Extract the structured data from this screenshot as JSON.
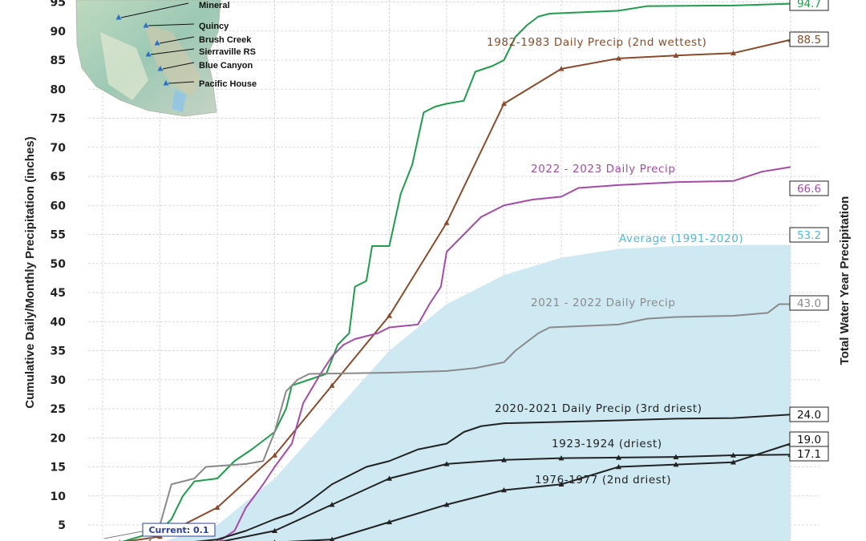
{
  "chart_data": {
    "type": "line",
    "ylabel_left": "Cumulative Daily/Monthly Precipitation (inches)",
    "ylabel_right": "Total Water Year Precipitation",
    "y_ticks": [
      5,
      10,
      15,
      20,
      25,
      30,
      35,
      40,
      45,
      50,
      55,
      60,
      65,
      70,
      75,
      80,
      85,
      90,
      95
    ],
    "ylim": [
      2,
      95.5
    ],
    "x_range_months": [
      0,
      12
    ],
    "grid": true,
    "current_label": "Current: 0.1",
    "average": {
      "label": "Average (1991-2020)",
      "end_value": "53.2",
      "color": "#cfe9f3",
      "label_color": "#4fb8e0",
      "points": [
        [
          1,
          2
        ],
        [
          2,
          5
        ],
        [
          3,
          13
        ],
        [
          4,
          24
        ],
        [
          5,
          35
        ],
        [
          6,
          43
        ],
        [
          7,
          48
        ],
        [
          8,
          51
        ],
        [
          9,
          52.5
        ],
        [
          10,
          53
        ],
        [
          11,
          53.2
        ],
        [
          12,
          53.2
        ]
      ]
    },
    "series": [
      {
        "name": "1982-1983 Daily Precip (2nd wettest)",
        "end_value": "88.5",
        "color": "#8b4a2a",
        "markers": true,
        "points": [
          [
            0.3,
            2
          ],
          [
            1.0,
            3
          ],
          [
            2.0,
            8
          ],
          [
            3.0,
            17
          ],
          [
            4.0,
            29
          ],
          [
            5.0,
            41
          ],
          [
            6.0,
            57
          ],
          [
            7.0,
            77.5
          ],
          [
            8.0,
            83.5
          ],
          [
            9.0,
            85.3
          ],
          [
            10.0,
            85.8
          ],
          [
            11.0,
            86.2
          ],
          [
            12.0,
            88.5
          ]
        ]
      },
      {
        "name": "",
        "end_value": "94.7",
        "color": "#1e9e4b",
        "markers": false,
        "points": [
          [
            0.3,
            2
          ],
          [
            1.0,
            4
          ],
          [
            1.2,
            6
          ],
          [
            1.4,
            10
          ],
          [
            1.6,
            12.5
          ],
          [
            2.0,
            13
          ],
          [
            2.3,
            16
          ],
          [
            2.6,
            18
          ],
          [
            3.0,
            21
          ],
          [
            3.2,
            25
          ],
          [
            3.3,
            29
          ],
          [
            3.6,
            30
          ],
          [
            3.9,
            31
          ],
          [
            4.1,
            36
          ],
          [
            4.3,
            38
          ],
          [
            4.4,
            46
          ],
          [
            4.6,
            47
          ],
          [
            4.7,
            53
          ],
          [
            5.0,
            53
          ],
          [
            5.2,
            62
          ],
          [
            5.4,
            67
          ],
          [
            5.6,
            76
          ],
          [
            5.8,
            77
          ],
          [
            6.0,
            77.5
          ],
          [
            6.3,
            78
          ],
          [
            6.5,
            83
          ],
          [
            6.8,
            84
          ],
          [
            7.0,
            85
          ],
          [
            7.2,
            89
          ],
          [
            7.4,
            91
          ],
          [
            7.6,
            92.5
          ],
          [
            7.8,
            93
          ],
          [
            9.0,
            93.5
          ],
          [
            9.5,
            94.3
          ],
          [
            11.0,
            94.4
          ],
          [
            12.0,
            94.7
          ]
        ]
      },
      {
        "name": "2022 - 2023 Daily Precip",
        "end_value": "66.6",
        "color": "#a64aa8",
        "markers": false,
        "points": [
          [
            1.2,
            0
          ],
          [
            2.0,
            2
          ],
          [
            2.3,
            4
          ],
          [
            2.5,
            8
          ],
          [
            2.8,
            12
          ],
          [
            3.0,
            15
          ],
          [
            3.3,
            19
          ],
          [
            3.5,
            26
          ],
          [
            3.8,
            31
          ],
          [
            4.0,
            34
          ],
          [
            4.2,
            36
          ],
          [
            4.4,
            37
          ],
          [
            4.8,
            38
          ],
          [
            5.0,
            39
          ],
          [
            5.5,
            39.5
          ],
          [
            5.7,
            43
          ],
          [
            5.9,
            46
          ],
          [
            6.0,
            52
          ],
          [
            6.3,
            55
          ],
          [
            6.6,
            58
          ],
          [
            6.8,
            59
          ],
          [
            7.0,
            60
          ],
          [
            7.5,
            61
          ],
          [
            8.0,
            61.5
          ],
          [
            8.3,
            63
          ],
          [
            9.0,
            63.5
          ],
          [
            10.0,
            64
          ],
          [
            11.0,
            64.2
          ],
          [
            11.5,
            65.8
          ],
          [
            12.0,
            66.6
          ]
        ]
      },
      {
        "name": "2021 - 2022 Daily Precip",
        "end_value": "43.0",
        "color": "#8a8a8a",
        "markers": false,
        "points": [
          [
            0.3,
            2
          ],
          [
            0.8,
            2
          ],
          [
            1.0,
            5
          ],
          [
            1.2,
            12
          ],
          [
            1.6,
            13
          ],
          [
            1.8,
            15
          ],
          [
            2.5,
            15.5
          ],
          [
            2.8,
            16
          ],
          [
            3.0,
            21
          ],
          [
            3.2,
            28
          ],
          [
            3.4,
            30
          ],
          [
            3.6,
            31
          ],
          [
            5.0,
            31.2
          ],
          [
            6.0,
            31.5
          ],
          [
            6.5,
            32
          ],
          [
            7.0,
            33
          ],
          [
            7.2,
            35
          ],
          [
            7.6,
            38
          ],
          [
            7.8,
            39
          ],
          [
            9.0,
            39.5
          ],
          [
            9.5,
            40.5
          ],
          [
            10.0,
            40.8
          ],
          [
            11.0,
            41
          ],
          [
            11.6,
            41.5
          ],
          [
            11.8,
            43
          ],
          [
            12.0,
            43.0
          ]
        ]
      },
      {
        "name": "2020-2021 Daily Precip (3rd driest)",
        "end_value": "24.0",
        "color": "#222222",
        "markers": false,
        "points": [
          [
            0.3,
            2
          ],
          [
            1.5,
            2
          ],
          [
            2.0,
            2.5
          ],
          [
            2.5,
            4
          ],
          [
            3.0,
            6
          ],
          [
            3.3,
            7
          ],
          [
            3.6,
            9
          ],
          [
            4.0,
            12
          ],
          [
            4.2,
            13
          ],
          [
            4.6,
            15
          ],
          [
            5.0,
            16
          ],
          [
            5.5,
            18
          ],
          [
            6.0,
            19
          ],
          [
            6.3,
            21
          ],
          [
            6.6,
            22
          ],
          [
            7.0,
            22.5
          ],
          [
            9.0,
            23
          ],
          [
            10.0,
            23.3
          ],
          [
            11.0,
            23.4
          ],
          [
            12.0,
            24.0
          ]
        ]
      },
      {
        "name": "1923-1924 (driest)",
        "end_value": "17.1",
        "color": "#222222",
        "markers": true,
        "points": [
          [
            0.3,
            1
          ],
          [
            1.0,
            1.5
          ],
          [
            2.0,
            2
          ],
          [
            3.0,
            4
          ],
          [
            4.0,
            8.5
          ],
          [
            5.0,
            13
          ],
          [
            6.0,
            15.5
          ],
          [
            7.0,
            16.2
          ],
          [
            8.0,
            16.5
          ],
          [
            9.0,
            16.6
          ],
          [
            10.0,
            16.7
          ],
          [
            11.0,
            17.0
          ],
          [
            12.0,
            17.1
          ]
        ]
      },
      {
        "name": "1976-1977 (2nd driest)",
        "end_value": "19.0",
        "color": "#222222",
        "markers": true,
        "points": [
          [
            0.3,
            1
          ],
          [
            1.0,
            1.2
          ],
          [
            2.0,
            1.5
          ],
          [
            3.0,
            2
          ],
          [
            4.0,
            2.5
          ],
          [
            5.0,
            5.5
          ],
          [
            6.0,
            8.5
          ],
          [
            7.0,
            11
          ],
          [
            8.0,
            12
          ],
          [
            9.0,
            15
          ],
          [
            10.0,
            15.4
          ],
          [
            11.0,
            15.8
          ],
          [
            12.0,
            19.0
          ]
        ]
      }
    ],
    "map_inset": {
      "stations": [
        "Mineral",
        "Quincy",
        "Brush Creek",
        "Sierraville RS",
        "Blue Canyon",
        "Pacific House"
      ]
    }
  }
}
